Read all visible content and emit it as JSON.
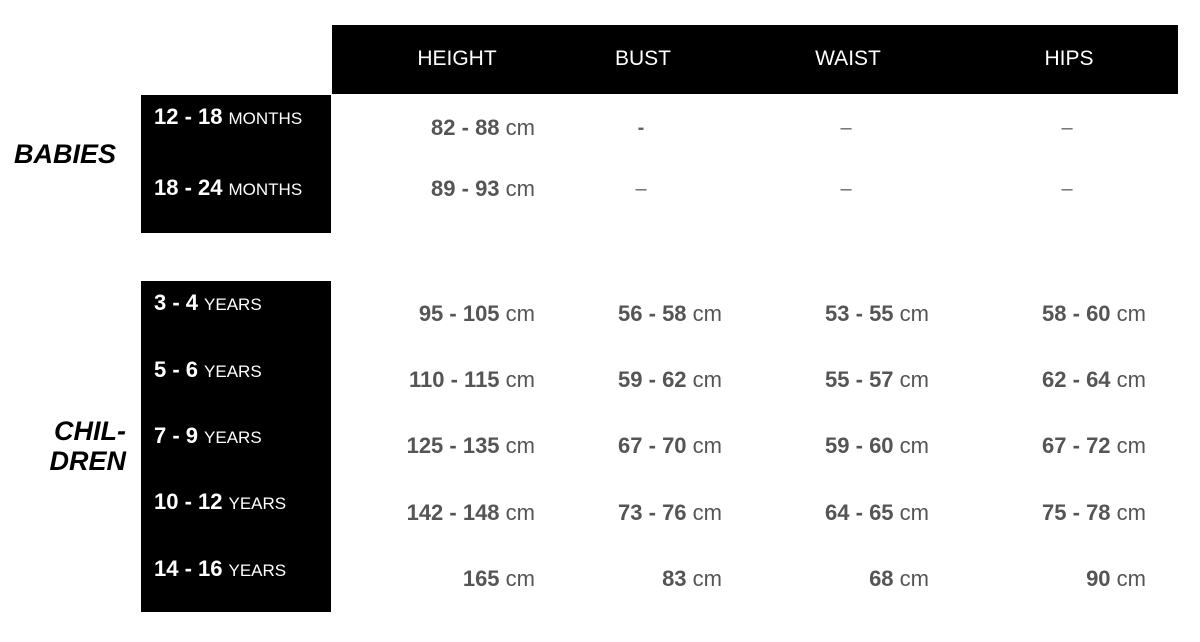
{
  "columns": [
    "HEIGHT",
    "BUST",
    "WAIST",
    "HIPS"
  ],
  "unit": "cm",
  "groups": [
    {
      "name": "BABIES",
      "rows": [
        {
          "range": "12 - 18",
          "period": "MONTHS",
          "values": [
            "82 - 88",
            "-",
            "–",
            "–"
          ]
        },
        {
          "range": "18 - 24",
          "period": "MONTHS",
          "values": [
            "89 - 93",
            "–",
            "–",
            "–"
          ]
        }
      ]
    },
    {
      "name_line1": "CHIL-",
      "name_line2": "DREN",
      "rows": [
        {
          "range": "3 - 4",
          "period": "YEARS",
          "values": [
            "95 - 105",
            "56 - 58",
            "53 - 55",
            "58 - 60"
          ]
        },
        {
          "range": "5 - 6",
          "period": "YEARS",
          "values": [
            "110 - 115",
            "59 - 62",
            "55 - 57",
            "62 - 64"
          ]
        },
        {
          "range": "7 - 9",
          "period": "YEARS",
          "values": [
            "125 - 135",
            "67 - 70",
            "59 - 60",
            "67 - 72"
          ]
        },
        {
          "range": "10 - 12",
          "period": "YEARS",
          "values": [
            "142 - 148",
            "73 - 76",
            "64 - 65",
            "75 - 78"
          ]
        },
        {
          "range": "14 - 16",
          "period": "YEARS",
          "values": [
            "165",
            "83",
            "68",
            "90"
          ]
        }
      ]
    }
  ]
}
